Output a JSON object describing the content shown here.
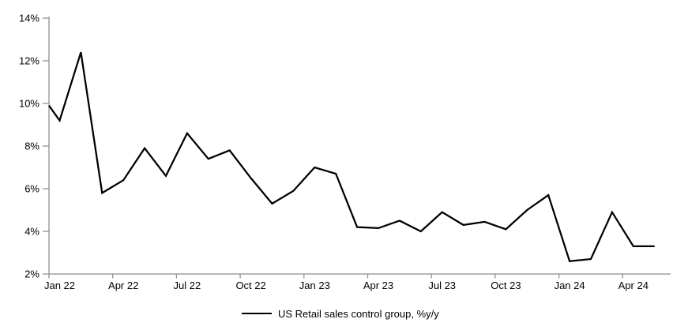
{
  "chart_data": {
    "type": "line",
    "title": "",
    "legend_label": "US Retail sales control group, %y/y",
    "legend_position": "bottom-center",
    "x": [
      "Jan 22",
      "Feb 22",
      "Mar 22",
      "Apr 22",
      "May 22",
      "Jun 22",
      "Jul 22",
      "Aug 22",
      "Sep 22",
      "Oct 22",
      "Nov 22",
      "Dec 22",
      "Jan 23",
      "Feb 23",
      "Mar 23",
      "Apr 23",
      "May 23",
      "Jun 23",
      "Jul 23",
      "Aug 23",
      "Sep 23",
      "Oct 23",
      "Nov 23",
      "Dec 23",
      "Jan 24",
      "Feb 24",
      "Mar 24",
      "Apr 24",
      "May 24"
    ],
    "values": [
      9.2,
      12.4,
      5.8,
      6.4,
      7.9,
      6.6,
      8.6,
      7.4,
      7.8,
      6.5,
      5.3,
      5.9,
      7.0,
      6.7,
      4.2,
      4.15,
      4.5,
      4.0,
      4.9,
      4.3,
      4.45,
      4.1,
      5.0,
      5.7,
      2.6,
      2.7,
      4.9,
      3.3,
      3.3
    ],
    "left_edge_entry_value": 9.9,
    "visible_x_tick_labels": [
      "Jan 22",
      "Apr 22",
      "Jul 22",
      "Oct 22",
      "Jan 23",
      "Apr 23",
      "Jul 23",
      "Oct 23",
      "Jan 24",
      "Apr 24"
    ],
    "y_tick_labels": [
      "2%",
      "4%",
      "6%",
      "8%",
      "10%",
      "12%",
      "14%"
    ],
    "ylim": [
      2,
      14
    ],
    "y_tick_step": 2,
    "grid": "off",
    "line_color": "#000000",
    "axis_color": "#8e8e8e",
    "text_color": "#000000",
    "background": "#ffffff"
  }
}
